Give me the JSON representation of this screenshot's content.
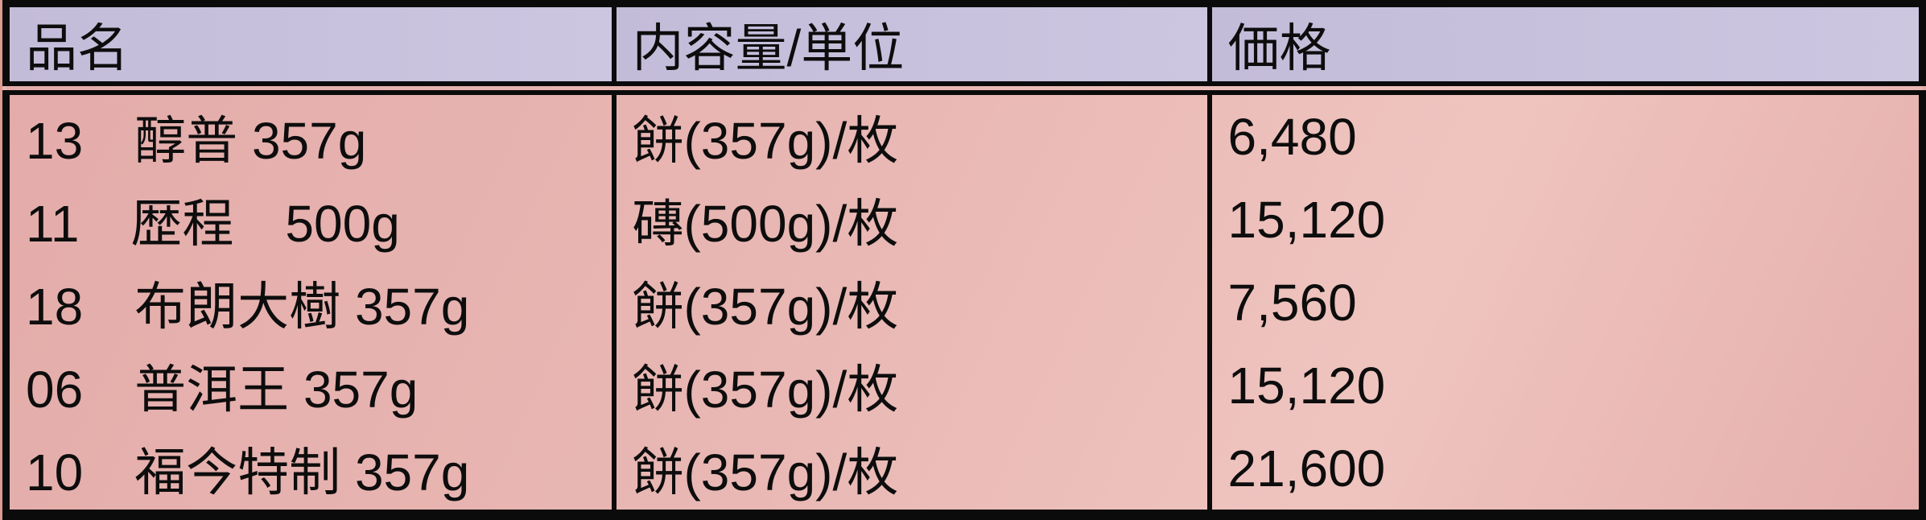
{
  "table": {
    "columns": [
      {
        "label": "品名"
      },
      {
        "label": "内容量/単位"
      },
      {
        "label": "価格"
      }
    ],
    "rows": [
      {
        "name": "13　醇普 357g",
        "unit": "餅(357g)/枚",
        "price": "6,480"
      },
      {
        "name": "11　歴程　500g",
        "unit": "磚(500g)/枚",
        "price": "15,120"
      },
      {
        "name": "18　布朗大樹 357g",
        "unit": "餅(357g)/枚",
        "price": "7,560"
      },
      {
        "name": "06　普洱王 357g",
        "unit": "餅(357g)/枚",
        "price": "15,120"
      },
      {
        "name": "10　福今特制 357g",
        "unit": "餅(357g)/枚",
        "price": "21,600"
      }
    ],
    "colors": {
      "header_bg": "#c6bfdb",
      "body_bg": "#e9b8b4",
      "border": "#0b0b0b",
      "page_bg": "#dc9a90",
      "text": "#0d0d0d"
    }
  }
}
